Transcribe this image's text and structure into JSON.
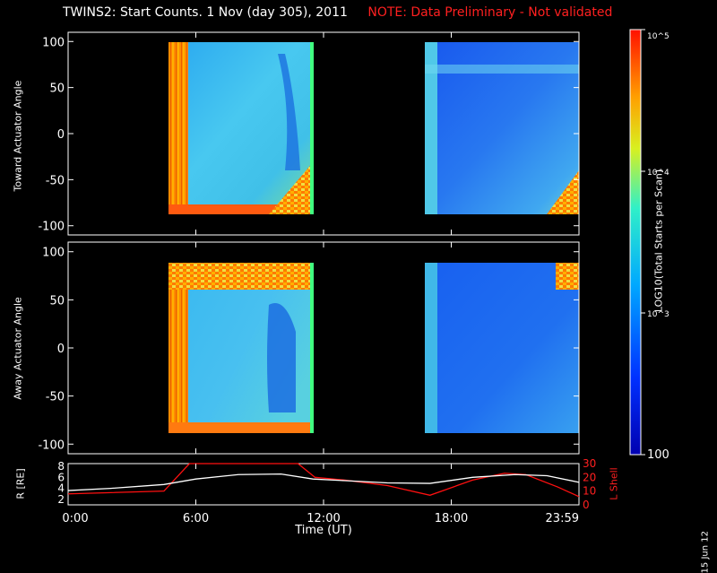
{
  "title": {
    "main": "TWINS2: Start Counts.  1 Nov (day 305), 2011",
    "note": "NOTE: Data Preliminary - Not validated"
  },
  "colors": {
    "background": "#000000",
    "axes": "#ffffff",
    "note": "#ff2020",
    "lshell": "#ff1010",
    "radius": "#ffffff"
  },
  "panels": {
    "toward": {
      "ylabel": "Toward Actuator Angle",
      "yticks": [
        "100",
        "50",
        "0",
        "-50",
        "-100"
      ],
      "ytick_values": [
        100,
        50,
        0,
        -50,
        -100
      ]
    },
    "away": {
      "ylabel": "Away Actuator Angle",
      "yticks": [
        "100",
        "50",
        "0",
        "-50",
        "-100"
      ],
      "ytick_values": [
        100,
        50,
        0,
        -50,
        -100
      ]
    }
  },
  "colorbar": {
    "label": "LOG10(Total Starts per Scan)",
    "tick_labels": [
      "10^5",
      "10^4",
      "10^3",
      "100"
    ],
    "tick_values": [
      100000,
      10000,
      1000,
      100
    ],
    "scale": "log"
  },
  "orbit_panel": {
    "ylabel_left": "R [RE]",
    "ylabel_right": "L Shell",
    "left_ticks": [
      "8",
      "6",
      "4",
      "2"
    ],
    "right_ticks": [
      "30",
      "20",
      "10",
      "0"
    ]
  },
  "xaxis": {
    "label": "Time (UT)",
    "ticks": [
      "0:00",
      "6:00",
      "12:00",
      "18:00",
      "23:59"
    ]
  },
  "datestamp": "15 Jun 12",
  "chart_data": [
    {
      "type": "heatmap",
      "title": "TWINS2: Start Counts.  1 Nov (day 305), 2011",
      "ylabel": "Toward Actuator Angle",
      "xlabel": "Time (UT)",
      "xlim_hours": [
        0,
        24
      ],
      "ylim": [
        -110,
        110
      ],
      "zscale": "log",
      "zlim": [
        100,
        100000
      ],
      "data_intervals_hours": [
        [
          4.5,
          11.6
        ],
        [
          17.3,
          24.0
        ]
      ],
      "angle_range": [
        -88,
        88
      ]
    },
    {
      "type": "heatmap",
      "ylabel": "Away Actuator Angle",
      "xlabel": "Time (UT)",
      "xlim_hours": [
        0,
        24
      ],
      "ylim": [
        -110,
        110
      ],
      "zscale": "log",
      "zlim": [
        100,
        100000
      ],
      "data_intervals_hours": [
        [
          4.5,
          11.6
        ],
        [
          17.3,
          24.0
        ]
      ],
      "angle_range": [
        -88,
        88
      ]
    },
    {
      "type": "line",
      "xlabel": "Time (UT)",
      "ylabel": "R [RE]",
      "ylim": [
        1,
        8.5
      ],
      "series": [
        {
          "name": "R",
          "x": [
            0,
            2,
            4.5,
            6,
            8,
            10,
            11.5,
            13,
            15,
            17,
            19,
            21,
            22.5,
            24
          ],
          "y": [
            3.6,
            4.0,
            4.7,
            5.7,
            6.5,
            6.6,
            5.7,
            5.4,
            5.0,
            4.9,
            6.0,
            6.5,
            6.3,
            5.1
          ]
        }
      ]
    },
    {
      "type": "line",
      "xlabel": "Time (UT)",
      "ylabel": "L Shell",
      "ylim": [
        0,
        30
      ],
      "series": [
        {
          "name": "L Shell",
          "x": [
            0,
            4.5,
            5.7,
            10.8,
            11.6,
            13,
            15,
            17,
            19,
            20.5,
            21.5,
            23,
            24
          ],
          "y": [
            8,
            10,
            30,
            30,
            20,
            18,
            14,
            7,
            18,
            23,
            22,
            13,
            6
          ]
        }
      ]
    }
  ]
}
